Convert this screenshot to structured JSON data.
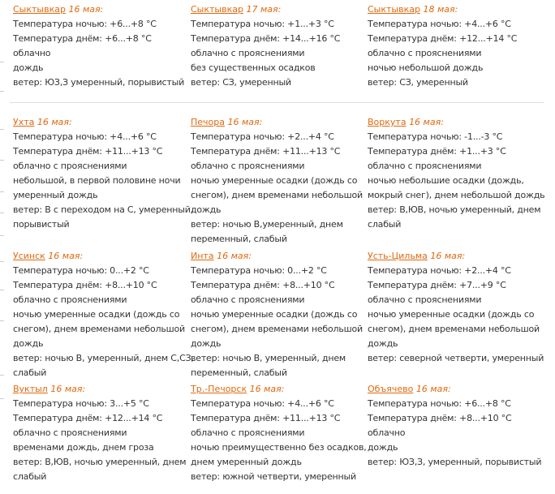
{
  "accent_color": "#e0690f",
  "rows": [
    [
      {
        "city": "Сыктывкар",
        "date": "16 мая:",
        "lines": [
          "Температура ночью: +6...+8 °С",
          "Температура днём: +6...+8 °С",
          "облачно",
          "дождь",
          "ветер: ЮЗ,З умеренный, порывистый"
        ]
      },
      {
        "city": "Сыктывкар",
        "date": "17 мая:",
        "lines": [
          "Температура ночью: +1...+3 °С",
          "Температура днём: +14...+16 °С",
          "облачно с прояснениями",
          "без существенных осадков",
          "ветер: СЗ, умеренный"
        ]
      },
      {
        "city": "Сыктывкар",
        "date": "18 мая:",
        "lines": [
          "Температура ночью: +4...+6 °С",
          "Температура днём: +12...+14 °С",
          "облачно с прояснениями",
          "ночью небольшой дождь",
          "ветер: СЗ, умеренный"
        ]
      }
    ],
    [
      {
        "city": "Ухта",
        "date": "16 мая:",
        "lines": [
          "Температура ночью: +4...+6 °С",
          "Температура днём: +11...+13 °С",
          "облачно с прояснениями",
          "небольшой, в первой половине ночи",
          "умеренный дождь",
          "ветер: В с переходом на С, умеренный,",
          "порывистый"
        ]
      },
      {
        "city": "Печора",
        "date": "16 мая:",
        "lines": [
          "Температура ночью: +2...+4 °С",
          "Температура днём: +11...+13 °С",
          "облачно с прояснениями",
          "ночью умеренные осадки (дождь со",
          "снегом), днем временами небольшой",
          "дождь",
          "ветер: ночью В,умеренный, днем",
          "переменный, слабый"
        ]
      },
      {
        "city": "Воркута",
        "date": "16 мая:",
        "lines": [
          "Температура ночью: -1...-3 °С",
          "Температура днём: +1...+3 °С",
          "облачно с прояснениями",
          "ночью небольшие осадки (дождь,",
          "мокрый снег), днем небольшой дождь",
          "ветер: В,ЮВ, ночью умеренный, днем",
          "слабый"
        ]
      }
    ],
    [
      {
        "city": "Усинск",
        "date": "16 мая:",
        "lines": [
          "Температура ночью: 0...+2 °С",
          "Температура днём: +8...+10 °С",
          "облачно с прояснениями",
          "ночью умеренные осадки (дождь со",
          "снегом), днем временами небольшой",
          "дождь",
          "ветер: ночью В, умеренный, днем С,СЗ,",
          "слабый"
        ]
      },
      {
        "city": "Инта",
        "date": "16 мая:",
        "lines": [
          "Температура ночью: 0...+2 °С",
          "Температура днём: +8...+10 °С",
          "облачно с прояснениями",
          "ночью умеренные осадки (дождь со",
          "снегом), днем временами небольшой",
          "дождь",
          "ветер: ночью В, умеренный, днем",
          "переменный, слабый"
        ]
      },
      {
        "city": "Усть-Цильма",
        "date": "16 мая:",
        "lines": [
          "Температура ночью: +2...+4 °С",
          "Температура днём: +7...+9 °С",
          "облачно с прояснениями",
          "ночью умеренные осадки (дождь со",
          "снегом), днем временами небольшой",
          "дождь",
          "ветер: северной четверти, умеренный"
        ]
      }
    ],
    [
      {
        "city": "Вуктыл",
        "date": "16 мая:",
        "lines": [
          "Температура ночью: 3...+5 °С",
          "Температура днём: +12...+14 °С",
          "облачно с прояснениями",
          "временами дождь, днем гроза",
          "ветер: В,ЮВ, ночью умеренный, днем",
          "слабый"
        ]
      },
      {
        "city": "Тр.-Печорск",
        "date": "16 мая:",
        "lines": [
          "Температура ночью: +4...+6 °С",
          "Температура днём: +11...+13 °С",
          "облачно с прояснениями",
          "ночью преимущественно без осадков,",
          "днем умеренный дождь",
          "ветер: южной четверти, умеренный"
        ]
      },
      {
        "city": "Объячево",
        "date": "16 мая:",
        "lines": [
          "Температура ночью: +6...+8 °С",
          "Температура днём: +8...+10 °С",
          "облачно",
          "дождь",
          "ветер: ЮЗ,З, умеренный, порывистый"
        ]
      }
    ]
  ]
}
